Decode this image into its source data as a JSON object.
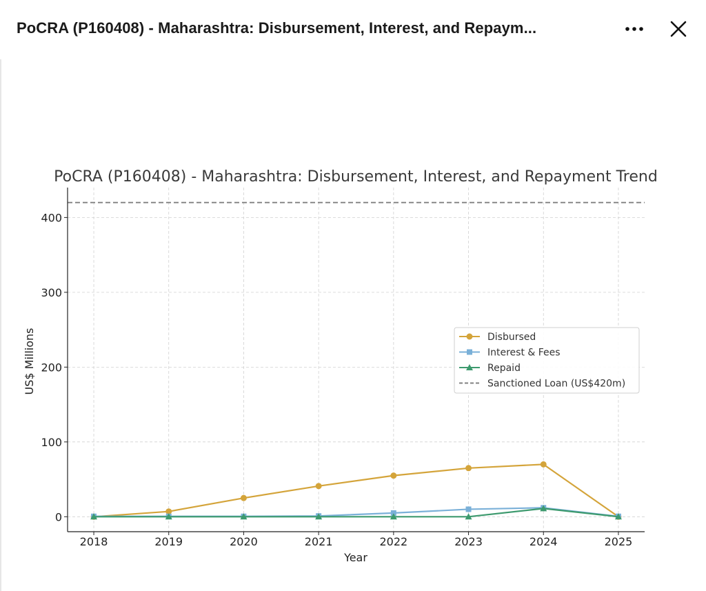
{
  "window": {
    "title": "PoCRA (P160408) - Maharashtra: Disbursement, Interest, and Repaym...",
    "more_icon": "more-horizontal-icon",
    "close_icon": "close-icon"
  },
  "chart_data": {
    "type": "line",
    "title": "PoCRA (P160408) - Maharashtra: Disbursement, Interest, and Repayment Trend",
    "xlabel": "Year",
    "ylabel": "US$ Millions",
    "x": [
      2018,
      2019,
      2020,
      2021,
      2022,
      2023,
      2024,
      2025
    ],
    "xlim": [
      2017.65,
      2025.35
    ],
    "ylim": [
      -20,
      440
    ],
    "yticks": [
      0,
      100,
      200,
      300,
      400
    ],
    "grid": true,
    "legend_position": "center-right",
    "series": [
      {
        "name": "Disbursed",
        "values": [
          0,
          7,
          25,
          41,
          55,
          65,
          70,
          0
        ],
        "color": "#D4A43A",
        "marker": "circle"
      },
      {
        "name": "Interest & Fees",
        "values": [
          0.5,
          0.5,
          0.5,
          1,
          5,
          10,
          12,
          0.5
        ],
        "color": "#7AB0D8",
        "marker": "square"
      },
      {
        "name": "Repaid",
        "values": [
          0,
          0,
          0,
          0,
          0,
          0,
          11,
          0
        ],
        "color": "#3D9A6E",
        "marker": "triangle"
      }
    ],
    "reference_line": {
      "name": "Sanctioned Loan (US$420m)",
      "value": 420,
      "color": "#808080",
      "style": "dashed"
    }
  }
}
